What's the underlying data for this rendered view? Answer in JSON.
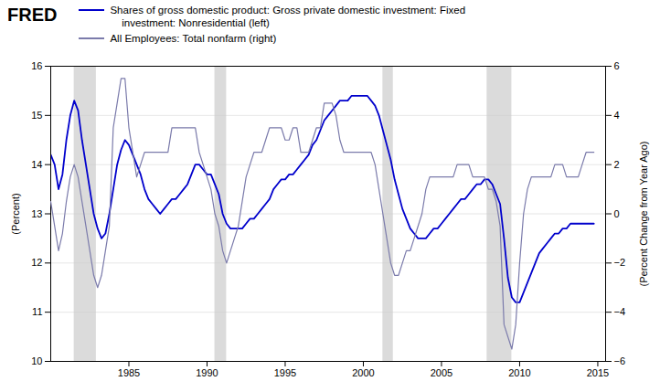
{
  "chart_data": {
    "type": "line",
    "annotations": [
      "FRED"
    ],
    "ylabel": "(Percent)",
    "y2label": "(Percent Change from Year Ago)",
    "xlim": [
      1980.0,
      2015.5
    ],
    "xticks": [
      1985,
      1990,
      1995,
      2000,
      2005,
      2010,
      2015
    ],
    "ylim": [
      10,
      16
    ],
    "yticks": [
      10,
      11,
      12,
      13,
      14,
      15,
      16
    ],
    "y2lim": [
      -6.0,
      6.0
    ],
    "y2ticks": [
      -6,
      -4,
      -2,
      0,
      2,
      4,
      6
    ],
    "grid": true,
    "legend": "upper left",
    "recession_bands": [
      [
        1981.5,
        1982.917
      ],
      [
        1990.5,
        1991.25
      ],
      [
        2001.25,
        2001.917
      ],
      [
        2007.917,
        2009.5
      ]
    ],
    "x": [
      1980.0,
      1980.25,
      1980.5,
      1980.75,
      1981.0,
      1981.25,
      1981.5,
      1981.75,
      1982.0,
      1982.25,
      1982.5,
      1982.75,
      1983.0,
      1983.25,
      1983.5,
      1983.75,
      1984.0,
      1984.25,
      1984.5,
      1984.75,
      1985.0,
      1985.25,
      1985.5,
      1985.75,
      1986.0,
      1986.25,
      1986.5,
      1986.75,
      1987.0,
      1987.25,
      1987.5,
      1987.75,
      1988.0,
      1988.25,
      1988.5,
      1988.75,
      1989.0,
      1989.25,
      1989.5,
      1989.75,
      1990.0,
      1990.25,
      1990.5,
      1990.75,
      1991.0,
      1991.25,
      1991.5,
      1991.75,
      1992.0,
      1992.25,
      1992.5,
      1992.75,
      1993.0,
      1993.25,
      1993.5,
      1993.75,
      1994.0,
      1994.25,
      1994.5,
      1994.75,
      1995.0,
      1995.25,
      1995.5,
      1995.75,
      1996.0,
      1996.25,
      1996.5,
      1996.75,
      1997.0,
      1997.25,
      1997.5,
      1997.75,
      1998.0,
      1998.25,
      1998.5,
      1998.75,
      1999.0,
      1999.25,
      1999.5,
      1999.75,
      2000.0,
      2000.25,
      2000.5,
      2000.75,
      2001.0,
      2001.25,
      2001.5,
      2001.75,
      2002.0,
      2002.25,
      2002.5,
      2002.75,
      2003.0,
      2003.25,
      2003.5,
      2003.75,
      2004.0,
      2004.25,
      2004.5,
      2004.75,
      2005.0,
      2005.25,
      2005.5,
      2005.75,
      2006.0,
      2006.25,
      2006.5,
      2006.75,
      2007.0,
      2007.25,
      2007.5,
      2007.75,
      2008.0,
      2008.25,
      2008.5,
      2008.75,
      2009.0,
      2009.25,
      2009.5,
      2009.75,
      2010.0,
      2010.25,
      2010.5,
      2010.75,
      2011.0,
      2011.25,
      2011.5,
      2011.75,
      2012.0,
      2012.25,
      2012.5,
      2012.75,
      2013.0,
      2013.25,
      2013.5,
      2013.75,
      2014.0,
      2014.25,
      2014.5,
      2014.75
    ],
    "series": [
      {
        "name": "Shares of gross domestic product: Gross private domestic investment: Fixed\n    investment: Nonresidential (left)",
        "color": "#0000cc",
        "values": [
          14.2,
          14.0,
          13.5,
          13.8,
          14.5,
          15.0,
          15.3,
          15.1,
          14.5,
          14.0,
          13.5,
          13.0,
          12.7,
          12.5,
          12.6,
          13.0,
          13.5,
          14.0,
          14.3,
          14.5,
          14.4,
          14.2,
          14.0,
          13.8,
          13.5,
          13.3,
          13.2,
          13.1,
          13.0,
          13.1,
          13.2,
          13.3,
          13.3,
          13.4,
          13.5,
          13.6,
          13.8,
          14.0,
          14.0,
          13.9,
          13.8,
          13.8,
          13.6,
          13.4,
          13.0,
          12.8,
          12.7,
          12.7,
          12.7,
          12.7,
          12.8,
          12.9,
          12.9,
          13.0,
          13.1,
          13.2,
          13.3,
          13.5,
          13.6,
          13.7,
          13.7,
          13.8,
          13.8,
          13.9,
          14.0,
          14.1,
          14.2,
          14.4,
          14.5,
          14.7,
          14.9,
          15.0,
          15.1,
          15.2,
          15.3,
          15.3,
          15.3,
          15.4,
          15.4,
          15.4,
          15.4,
          15.4,
          15.3,
          15.2,
          15.0,
          14.7,
          14.4,
          14.1,
          13.7,
          13.4,
          13.1,
          12.9,
          12.7,
          12.6,
          12.5,
          12.5,
          12.5,
          12.6,
          12.7,
          12.7,
          12.8,
          12.9,
          13.0,
          13.1,
          13.2,
          13.3,
          13.3,
          13.4,
          13.5,
          13.6,
          13.6,
          13.7,
          13.7,
          13.6,
          13.4,
          13.2,
          12.5,
          11.7,
          11.3,
          11.2,
          11.2,
          11.4,
          11.6,
          11.8,
          12.0,
          12.2,
          12.3,
          12.4,
          12.5,
          12.6,
          12.6,
          12.7,
          12.7,
          12.8,
          12.8,
          12.8,
          12.8,
          12.8,
          12.8,
          12.8
        ]
      },
      {
        "name": "All Employees: Total nonfarm (right)",
        "color": "#7b7bab",
        "axis": "y2",
        "values": [
          0.5,
          -0.5,
          -1.5,
          -0.8,
          0.5,
          1.5,
          2.0,
          1.5,
          0.5,
          -0.5,
          -1.5,
          -2.5,
          -3.0,
          -2.5,
          -1.5,
          -0.5,
          3.5,
          4.5,
          5.5,
          5.5,
          3.5,
          2.5,
          1.5,
          2.0,
          2.5,
          2.5,
          2.5,
          2.5,
          2.5,
          2.5,
          2.5,
          3.5,
          3.5,
          3.5,
          3.5,
          3.5,
          3.5,
          3.5,
          2.5,
          2.0,
          1.5,
          1.0,
          0.0,
          -0.5,
          -1.5,
          -2.0,
          -1.5,
          -1.0,
          -0.5,
          0.5,
          1.5,
          2.0,
          2.5,
          2.5,
          2.5,
          3.0,
          3.5,
          3.5,
          3.5,
          3.5,
          3.0,
          3.0,
          3.5,
          3.5,
          2.5,
          2.5,
          2.5,
          3.0,
          3.5,
          3.5,
          4.5,
          4.5,
          4.5,
          4.0,
          3.0,
          2.5,
          2.5,
          2.5,
          2.5,
          2.5,
          2.5,
          2.5,
          2.5,
          2.0,
          1.0,
          0.0,
          -1.0,
          -2.0,
          -2.5,
          -2.5,
          -2.0,
          -1.5,
          -1.5,
          -1.0,
          -0.5,
          0.0,
          1.0,
          1.5,
          1.5,
          1.5,
          1.5,
          1.5,
          1.5,
          1.5,
          2.0,
          2.0,
          2.0,
          2.0,
          1.5,
          1.5,
          1.5,
          1.5,
          1.0,
          1.0,
          0.5,
          -0.5,
          -4.5,
          -5.0,
          -5.5,
          -4.5,
          -2.0,
          0.0,
          1.0,
          1.5,
          1.5,
          1.5,
          1.5,
          1.5,
          1.5,
          2.0,
          2.0,
          2.0,
          1.5,
          1.5,
          1.5,
          1.5,
          2.0,
          2.5,
          2.5,
          2.5
        ]
      }
    ]
  }
}
